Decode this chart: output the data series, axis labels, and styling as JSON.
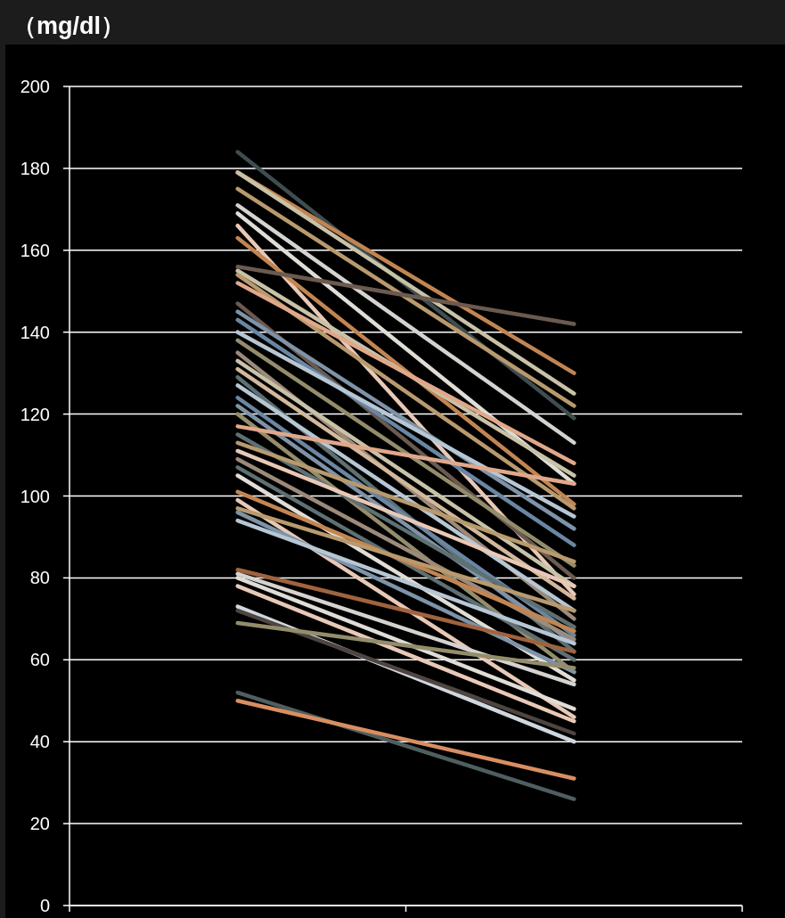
{
  "chart_data": {
    "type": "line",
    "ylabel": "（mg/dl）",
    "categories": [
      null,
      null
    ],
    "ylim": [
      0,
      200
    ],
    "yticks": [
      0,
      20,
      40,
      60,
      80,
      100,
      120,
      140,
      160,
      180,
      200
    ],
    "grid": "y",
    "marker": "none",
    "line_style": "solid",
    "series": [
      {
        "color": "#3f4d50",
        "values": [
          184,
          119
        ]
      },
      {
        "color": "#c28552",
        "values": [
          179,
          130
        ]
      },
      {
        "color": "#c8c2a8",
        "values": [
          179,
          125
        ]
      },
      {
        "color": "#b89a6e",
        "values": [
          175,
          122
        ]
      },
      {
        "color": "#d5d3cf",
        "values": [
          171,
          113
        ]
      },
      {
        "color": "#e0dcd6",
        "values": [
          169,
          103
        ]
      },
      {
        "color": "#e8c8b6",
        "values": [
          166,
          76
        ]
      },
      {
        "color": "#c28552",
        "values": [
          163,
          98
        ]
      },
      {
        "color": "#6b5a50",
        "values": [
          156,
          142
        ]
      },
      {
        "color": "#c8c2a8",
        "values": [
          155,
          105
        ]
      },
      {
        "color": "#b89a6e",
        "values": [
          154,
          97
        ]
      },
      {
        "color": "#e0a88a",
        "values": [
          152,
          108
        ]
      },
      {
        "color": "#6b5a50",
        "values": [
          147,
          80
        ]
      },
      {
        "color": "#7e93a8",
        "values": [
          145,
          92
        ]
      },
      {
        "color": "#6a86a3",
        "values": [
          143,
          88
        ]
      },
      {
        "color": "#b7c6d3",
        "values": [
          140,
          95
        ]
      },
      {
        "color": "#948d6c",
        "values": [
          138,
          83
        ]
      },
      {
        "color": "#9c8a7a",
        "values": [
          135,
          70
        ]
      },
      {
        "color": "#c8c2a8",
        "values": [
          133,
          78
        ]
      },
      {
        "color": "#d2b89c",
        "values": [
          131,
          75
        ]
      },
      {
        "color": "#5f7072",
        "values": [
          129,
          62
        ]
      },
      {
        "color": "#b7c6d3",
        "values": [
          127,
          72
        ]
      },
      {
        "color": "#6a86a3",
        "values": [
          124,
          66
        ]
      },
      {
        "color": "#7e93a8",
        "values": [
          122,
          64
        ]
      },
      {
        "color": "#948d6c",
        "values": [
          120,
          57
        ]
      },
      {
        "color": "#e0a88a",
        "values": [
          117,
          103
        ]
      },
      {
        "color": "#5f7072",
        "values": [
          115,
          68
        ]
      },
      {
        "color": "#b89a6e",
        "values": [
          113,
          84
        ]
      },
      {
        "color": "#e8c8b6",
        "values": [
          111,
          78
        ]
      },
      {
        "color": "#9c8a7a",
        "values": [
          109,
          65
        ]
      },
      {
        "color": "#5f7072",
        "values": [
          107,
          60
        ]
      },
      {
        "color": "#e0dcd6",
        "values": [
          105,
          55
        ]
      },
      {
        "color": "#c28552",
        "values": [
          101,
          67
        ]
      },
      {
        "color": "#e8c8b6",
        "values": [
          99,
          46
        ]
      },
      {
        "color": "#b89a6e",
        "values": [
          97,
          72
        ]
      },
      {
        "color": "#7e93a8",
        "values": [
          96,
          57
        ]
      },
      {
        "color": "#b7c6d3",
        "values": [
          94,
          64
        ]
      },
      {
        "color": "#a0633f",
        "values": [
          82,
          62
        ]
      },
      {
        "color": "#d5d3cf",
        "values": [
          81,
          54
        ]
      },
      {
        "color": "#e0dcd6",
        "values": [
          80,
          48
        ]
      },
      {
        "color": "#e8c8b6",
        "values": [
          78,
          45
        ]
      },
      {
        "color": "#cfd6dd",
        "values": [
          73,
          40
        ]
      },
      {
        "color": "#4e4540",
        "values": [
          72,
          42
        ]
      },
      {
        "color": "#948d6c",
        "values": [
          69,
          58
        ]
      },
      {
        "color": "#4f5f60",
        "values": [
          52,
          26
        ]
      },
      {
        "color": "#d98e62",
        "values": [
          50,
          31
        ]
      }
    ]
  }
}
